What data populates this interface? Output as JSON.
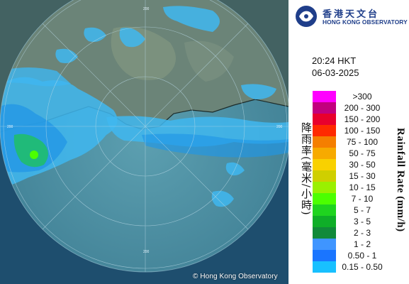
{
  "map": {
    "copyright": "© Hong Kong Observatory",
    "range_labels": [
      "200",
      "200",
      "200",
      "200"
    ]
  },
  "logo": {
    "chinese_name": "香港天文台",
    "english_name": "HONG KONG OBSERVATORY"
  },
  "time": "20:24 HKT",
  "date": "06-03-2025",
  "legend": {
    "title_chinese": "降雨率(毫米/小時)",
    "title_english": "Rainfall Rate (mm/h)",
    "items": [
      {
        "label": ">300",
        "color": "#ff00ff"
      },
      {
        "label": "200 - 300",
        "color": "#c2007e"
      },
      {
        "label": "150 - 200",
        "color": "#e8002d"
      },
      {
        "label": "100 - 150",
        "color": "#ff2a00"
      },
      {
        "label": "75 - 100",
        "color": "#f57f00"
      },
      {
        "label": "50 - 75",
        "color": "#f7aa00"
      },
      {
        "label": "30 - 50",
        "color": "#f9d100"
      },
      {
        "label": "15 - 30",
        "color": "#cfcf00"
      },
      {
        "label": "10 - 15",
        "color": "#9af000"
      },
      {
        "label": "7 - 10",
        "color": "#4cff00"
      },
      {
        "label": "5 - 7",
        "color": "#1fd41f"
      },
      {
        "label": "3 - 5",
        "color": "#0fae28"
      },
      {
        "label": "2 - 3",
        "color": "#118a3a"
      },
      {
        "label": "1 - 2",
        "color": "#3f95ff"
      },
      {
        "label": "0.50 - 1",
        "color": "#1a75ff"
      },
      {
        "label": "0.15 - 0.50",
        "color": "#18c0ff"
      }
    ]
  }
}
